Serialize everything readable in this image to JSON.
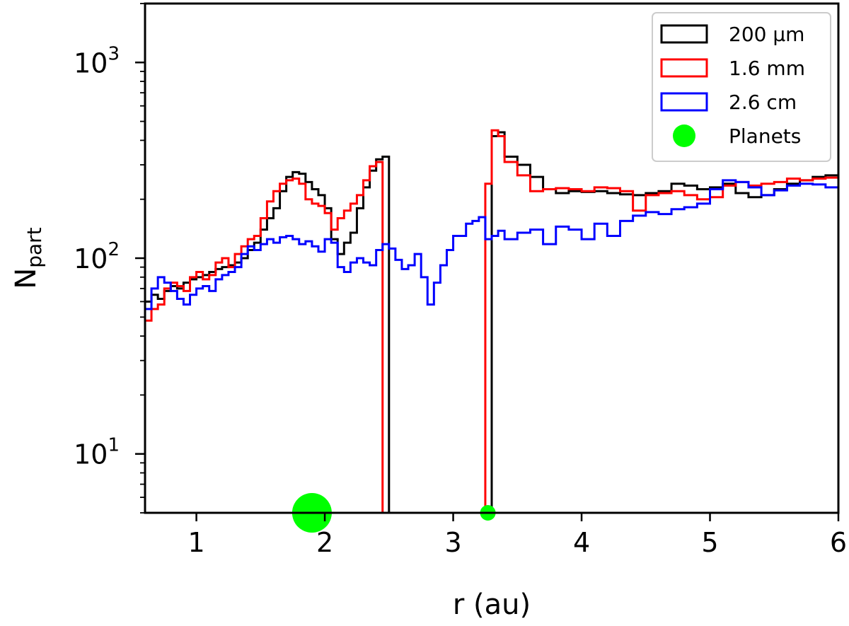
{
  "chart_data": {
    "type": "step",
    "xlabel": "r (au)",
    "ylabel": {
      "base": "N",
      "subscript": "part"
    },
    "xlim": [
      0.6,
      6.0
    ],
    "ylim": [
      5,
      2000
    ],
    "yscale": "log",
    "xticks": [
      {
        "value": 1,
        "label": "1"
      },
      {
        "value": 2,
        "label": "2"
      },
      {
        "value": 3,
        "label": "3"
      },
      {
        "value": 4,
        "label": "4"
      },
      {
        "value": 5,
        "label": "5"
      },
      {
        "value": 6,
        "label": "6"
      }
    ],
    "yticks": [
      {
        "value": 10,
        "base": "10",
        "exp": "1"
      },
      {
        "value": 100,
        "base": "10",
        "exp": "2"
      },
      {
        "value": 1000,
        "base": "10",
        "exp": "3"
      }
    ],
    "legend_position": "top-right",
    "bin_edges": [
      0.6,
      0.65,
      0.7,
      0.75,
      0.8,
      0.85,
      0.9,
      0.95,
      1.0,
      1.05,
      1.1,
      1.15,
      1.2,
      1.25,
      1.3,
      1.35,
      1.4,
      1.45,
      1.5,
      1.55,
      1.6,
      1.65,
      1.7,
      1.75,
      1.8,
      1.85,
      1.9,
      1.95,
      2.0,
      2.05,
      2.1,
      2.15,
      2.2,
      2.25,
      2.3,
      2.35,
      2.4,
      2.45,
      2.5,
      2.55,
      2.6,
      2.65,
      2.7,
      2.75,
      2.8,
      2.85,
      2.9,
      2.95,
      3.0,
      3.1,
      3.15,
      3.2,
      3.25,
      3.3,
      3.35,
      3.4,
      3.5,
      3.6,
      3.7,
      3.8,
      3.9,
      4.0,
      4.1,
      4.2,
      4.3,
      4.4,
      4.5,
      4.6,
      4.7,
      4.8,
      4.9,
      5.0,
      5.1,
      5.2,
      5.3,
      5.4,
      5.5,
      5.6,
      5.7,
      5.8,
      5.9,
      6.0
    ],
    "series": [
      {
        "name": "200 μm",
        "color": "#000000",
        "values": [
          60,
          65,
          62,
          68,
          72,
          70,
          75,
          78,
          80,
          82,
          85,
          88,
          90,
          92,
          95,
          100,
          110,
          120,
          140,
          160,
          180,
          220,
          260,
          275,
          270,
          245,
          225,
          210,
          180,
          125,
          105,
          120,
          135,
          180,
          230,
          280,
          320,
          330,
          0,
          0,
          0,
          0,
          0,
          0,
          0,
          0,
          0,
          0,
          0,
          0,
          0,
          0,
          0,
          420,
          440,
          330,
          300,
          260,
          225,
          215,
          220,
          218,
          220,
          215,
          212,
          210,
          215,
          220,
          240,
          235,
          225,
          230,
          240,
          215,
          205,
          210,
          225,
          240,
          250,
          260,
          265
        ]
      },
      {
        "name": "1.6 mm",
        "color": "#ff0000",
        "values": [
          48,
          55,
          58,
          70,
          75,
          72,
          68,
          80,
          85,
          78,
          82,
          95,
          100,
          90,
          105,
          115,
          125,
          130,
          160,
          195,
          220,
          240,
          250,
          255,
          240,
          200,
          190,
          185,
          170,
          140,
          160,
          175,
          190,
          210,
          250,
          295,
          310,
          0,
          0,
          0,
          0,
          0,
          0,
          0,
          0,
          0,
          0,
          0,
          0,
          0,
          0,
          0,
          240,
          450,
          420,
          310,
          265,
          220,
          225,
          228,
          225,
          220,
          230,
          228,
          220,
          175,
          210,
          215,
          220,
          210,
          200,
          205,
          235,
          245,
          235,
          240,
          245,
          255,
          250,
          255,
          258
        ]
      },
      {
        "name": "2.6 cm",
        "color": "#0000ff",
        "values": [
          55,
          70,
          80,
          75,
          68,
          62,
          58,
          65,
          70,
          72,
          68,
          78,
          82,
          85,
          90,
          105,
          115,
          110,
          118,
          125,
          120,
          128,
          130,
          125,
          118,
          122,
          115,
          108,
          125,
          120,
          90,
          85,
          95,
          100,
          95,
          92,
          110,
          118,
          112,
          98,
          88,
          92,
          105,
          80,
          58,
          75,
          92,
          110,
          130,
          150,
          155,
          162,
          125,
          130,
          138,
          125,
          135,
          140,
          118,
          145,
          140,
          125,
          150,
          130,
          155,
          165,
          172,
          168,
          178,
          182,
          190,
          225,
          250,
          245,
          230,
          210,
          222,
          235,
          240,
          238,
          230
        ]
      }
    ],
    "planets": {
      "name": "Planets",
      "color": "#00ff00",
      "points": [
        {
          "r": 1.9,
          "size": "large"
        },
        {
          "r": 3.27,
          "size": "small"
        }
      ]
    }
  }
}
